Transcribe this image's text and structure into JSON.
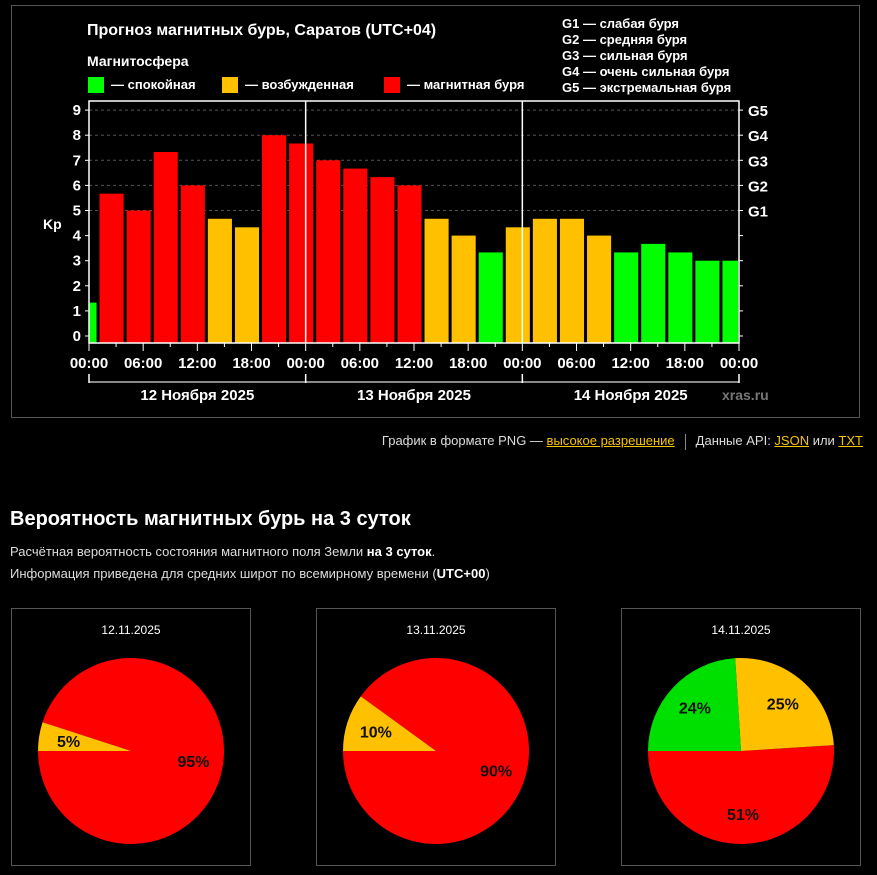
{
  "chart": {
    "title": "Прогноз магнитных бурь, Саратов (UTC+04)",
    "legend_title": "Магнитосфера",
    "legend": [
      {
        "label": "— спокойная",
        "color": "#00ff00"
      },
      {
        "label": "— возбужденная",
        "color": "#ffc000"
      },
      {
        "label": "— магнитная буря",
        "color": "#ff0000"
      }
    ],
    "g_scale": [
      "G1 — слабая буря",
      "G2 — средняя буря",
      "G3 — сильная буря",
      "G4 — очень сильная буря",
      "G5 — экстремальная буря"
    ],
    "watermark": "xras.ru"
  },
  "chart_data": {
    "type": "bar",
    "title": "Прогноз магнитных бурь, Саратов (UTC+04)",
    "ylabel": "Kp",
    "ylim": [
      0,
      9
    ],
    "yticks": [
      "0",
      "1",
      "2",
      "3",
      "4",
      "5",
      "6",
      "7",
      "8",
      "9"
    ],
    "right_ticks": [
      {
        "value": 5,
        "label": "G1"
      },
      {
        "value": 6,
        "label": "G2"
      },
      {
        "value": 7,
        "label": "G3"
      },
      {
        "value": 8,
        "label": "G4"
      },
      {
        "value": 9,
        "label": "G5"
      }
    ],
    "x_hours_total": 72,
    "xtick_labels": [
      "00:00",
      "06:00",
      "12:00",
      "18:00",
      "00:00",
      "06:00",
      "12:00",
      "18:00",
      "00:00",
      "06:00",
      "12:00",
      "18:00",
      "00:00"
    ],
    "days": [
      "12 Ноября 2025",
      "13 Ноября 2025",
      "14 Ноября 2025"
    ],
    "grid": true,
    "bars": [
      {
        "start_h": 0,
        "end_h": 1,
        "kp": 1.33,
        "level": "quiet"
      },
      {
        "start_h": 1,
        "end_h": 4,
        "kp": 5.67,
        "level": "storm"
      },
      {
        "start_h": 4,
        "end_h": 7,
        "kp": 5.0,
        "level": "storm"
      },
      {
        "start_h": 7,
        "end_h": 10,
        "kp": 7.33,
        "level": "storm"
      },
      {
        "start_h": 10,
        "end_h": 13,
        "kp": 6.0,
        "level": "storm"
      },
      {
        "start_h": 13,
        "end_h": 16,
        "kp": 4.67,
        "level": "active"
      },
      {
        "start_h": 16,
        "end_h": 19,
        "kp": 4.33,
        "level": "active"
      },
      {
        "start_h": 19,
        "end_h": 22,
        "kp": 8.0,
        "level": "storm"
      },
      {
        "start_h": 22,
        "end_h": 25,
        "kp": 7.67,
        "level": "storm"
      },
      {
        "start_h": 25,
        "end_h": 28,
        "kp": 7.0,
        "level": "storm"
      },
      {
        "start_h": 28,
        "end_h": 31,
        "kp": 6.67,
        "level": "storm"
      },
      {
        "start_h": 31,
        "end_h": 34,
        "kp": 6.33,
        "level": "storm"
      },
      {
        "start_h": 34,
        "end_h": 37,
        "kp": 6.0,
        "level": "storm"
      },
      {
        "start_h": 37,
        "end_h": 40,
        "kp": 4.67,
        "level": "active"
      },
      {
        "start_h": 40,
        "end_h": 43,
        "kp": 4.0,
        "level": "active"
      },
      {
        "start_h": 43,
        "end_h": 46,
        "kp": 3.33,
        "level": "quiet"
      },
      {
        "start_h": 46,
        "end_h": 49,
        "kp": 4.33,
        "level": "active"
      },
      {
        "start_h": 49,
        "end_h": 52,
        "kp": 4.67,
        "level": "active"
      },
      {
        "start_h": 52,
        "end_h": 55,
        "kp": 4.67,
        "level": "active"
      },
      {
        "start_h": 55,
        "end_h": 58,
        "kp": 4.0,
        "level": "active"
      },
      {
        "start_h": 58,
        "end_h": 61,
        "kp": 3.33,
        "level": "quiet"
      },
      {
        "start_h": 61,
        "end_h": 64,
        "kp": 3.67,
        "level": "quiet"
      },
      {
        "start_h": 64,
        "end_h": 67,
        "kp": 3.33,
        "level": "quiet"
      },
      {
        "start_h": 67,
        "end_h": 70,
        "kp": 3.0,
        "level": "quiet"
      },
      {
        "start_h": 70,
        "end_h": 72,
        "kp": 3.0,
        "level": "quiet"
      }
    ],
    "level_colors": {
      "quiet": "#00ff00",
      "active": "#ffc000",
      "storm": "#ff0000"
    },
    "pies": [
      {
        "date": "12.11.2025",
        "slices": [
          {
            "name": "storm",
            "value": 95,
            "label": "95%",
            "color": "#ff0000"
          },
          {
            "name": "active",
            "value": 5,
            "label": "5%",
            "color": "#ffc000"
          }
        ]
      },
      {
        "date": "13.11.2025",
        "slices": [
          {
            "name": "storm",
            "value": 90,
            "label": "90%",
            "color": "#ff0000"
          },
          {
            "name": "active",
            "value": 10,
            "label": "10%",
            "color": "#ffc000"
          }
        ]
      },
      {
        "date": "14.11.2025",
        "slices": [
          {
            "name": "storm",
            "value": 51,
            "label": "51%",
            "color": "#ff0000"
          },
          {
            "name": "active",
            "value": 25,
            "label": "25%",
            "color": "#ffc000"
          },
          {
            "name": "quiet",
            "value": 24,
            "label": "24%",
            "color": "#00e000"
          }
        ]
      }
    ]
  },
  "links": {
    "png_prefix": "График в формате PNG — ",
    "png_link": "высокое разрешение",
    "api_prefix": "Данные API: ",
    "json_link": "JSON",
    "or": " или ",
    "txt_link": "TXT"
  },
  "probability": {
    "title": "Вероятность магнитных бурь на 3 суток",
    "line1_prefix": "Расчётная вероятность состояния магнитного поля Земли ",
    "line1_bold": "на 3 суток",
    "line1_suffix": ".",
    "line2_prefix": "Информация приведена для средних широт по всемирному времени (",
    "line2_bold": "UTC+00",
    "line2_suffix": ")"
  }
}
